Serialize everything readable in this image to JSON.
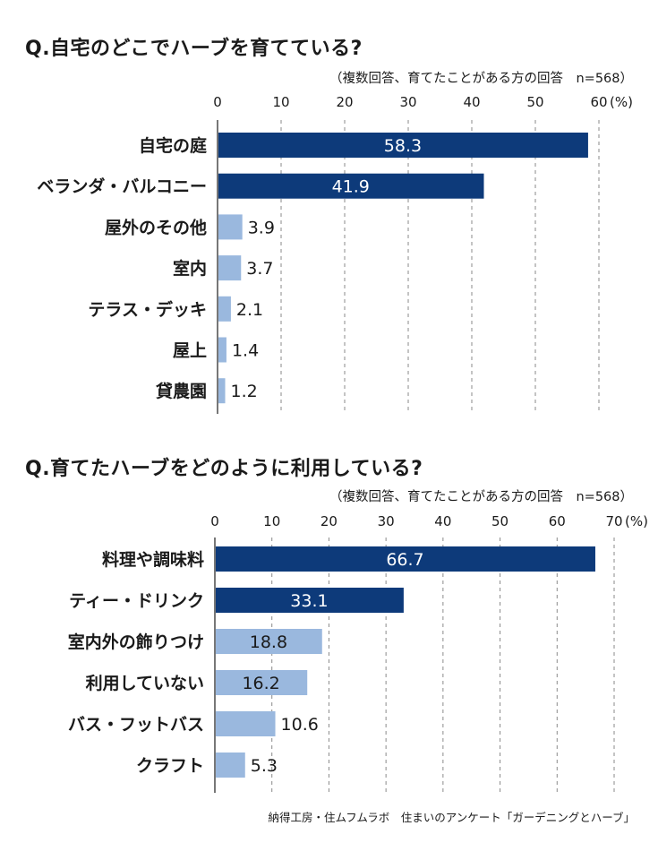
{
  "chart_data": [
    {
      "type": "bar",
      "orientation": "horizontal",
      "title": "Q.自宅のどこでハーブを育てている?",
      "subtitle": "（複数回答、育てたことがある方の回答　n=568）",
      "unit": "(%)",
      "xlim": [
        0,
        60
      ],
      "ticks": [
        0,
        10,
        20,
        30,
        40,
        50,
        60
      ],
      "categories": [
        "自宅の庭",
        "ベランダ・バルコニー",
        "屋外のその他",
        "室内",
        "テラス・デッキ",
        "屋上",
        "貸農園"
      ],
      "values": [
        58.3,
        41.9,
        3.9,
        3.7,
        2.1,
        1.4,
        1.2
      ],
      "grid": true
    },
    {
      "type": "bar",
      "orientation": "horizontal",
      "title": "Q.育てたハーブをどのように利用している?",
      "subtitle": "（複数回答、育てたことがある方の回答　n=568）",
      "unit": "(%)",
      "xlim": [
        0,
        70
      ],
      "ticks": [
        0,
        10,
        20,
        30,
        40,
        50,
        60,
        70
      ],
      "categories": [
        "料理や調味料",
        "ティー・ドリンク",
        "室内外の飾りつけ",
        "利用していない",
        "バス・フットバス",
        "クラフト"
      ],
      "values": [
        66.7,
        33.1,
        18.8,
        16.2,
        10.6,
        5.3
      ],
      "grid": true
    }
  ],
  "colors": {
    "dark_bar": "#0d3a7a",
    "light_bar": "#9ab8de",
    "grid": "#8a8a8a",
    "text": "#1a1a1a"
  },
  "footer": "納得工房・住ムフムラボ　住まいのアンケート「ガーデニングとハーブ」"
}
